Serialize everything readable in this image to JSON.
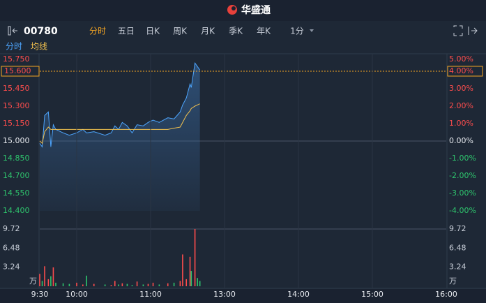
{
  "header": {
    "brand": "华盛通"
  },
  "toolbar": {
    "code": "00780",
    "tabs": [
      "分时",
      "五日",
      "日K",
      "周K",
      "月K",
      "季K",
      "年K",
      "1分"
    ],
    "active_tab": 0
  },
  "chart_data": [
    {
      "type": "line",
      "x": [
        0,
        2,
        4,
        7,
        9,
        11,
        13,
        19,
        24,
        30,
        35,
        38,
        44,
        53,
        58,
        61,
        64,
        67,
        71,
        75,
        79,
        84,
        88,
        92,
        97,
        104,
        109,
        114,
        116,
        119,
        122,
        123,
        126,
        128,
        130
      ],
      "series": [
        {
          "name": "分时",
          "color": "#4da6ff",
          "values": [
            14.98,
            14.95,
            15.22,
            15.25,
            14.95,
            15.14,
            15.1,
            15.07,
            15.05,
            15.07,
            15.1,
            15.07,
            15.08,
            15.05,
            15.07,
            15.13,
            15.1,
            15.16,
            15.13,
            15.07,
            15.14,
            15.13,
            15.16,
            15.18,
            15.16,
            15.2,
            15.19,
            15.25,
            15.31,
            15.37,
            15.49,
            15.46,
            15.67,
            15.64,
            15.61
          ]
        },
        {
          "name": "均线",
          "color": "#f2c14e",
          "values": [
            15.0,
            14.98,
            15.08,
            15.12,
            15.1,
            15.1,
            15.1,
            15.1,
            15.1,
            15.1,
            15.1,
            15.1,
            15.1,
            15.1,
            15.1,
            15.1,
            15.1,
            15.1,
            15.1,
            15.1,
            15.1,
            15.1,
            15.1,
            15.1,
            15.1,
            15.1,
            15.11,
            15.12,
            15.16,
            15.22,
            15.26,
            15.28,
            15.3,
            15.31,
            15.32
          ]
        }
      ],
      "xlim": [
        0,
        330
      ],
      "ylim": [
        14.4,
        15.75
      ],
      "yticks": [
        {
          "value": 15.75,
          "label": "15.750"
        },
        {
          "value": 15.45,
          "label": "15.450"
        },
        {
          "value": 15.3,
          "label": "15.300"
        },
        {
          "value": 15.15,
          "label": "15.150"
        },
        {
          "value": 15.0,
          "label": "15.000"
        },
        {
          "value": 14.85,
          "label": "14.850"
        },
        {
          "value": 14.7,
          "label": "14.700"
        },
        {
          "value": 14.55,
          "label": "14.550"
        },
        {
          "value": 14.4,
          "label": "14.400"
        }
      ],
      "y2lim": [
        -4,
        5
      ],
      "y2ticks": [
        {
          "value": 5,
          "label": "5.00%"
        },
        {
          "value": 3,
          "label": "3.00%"
        },
        {
          "value": 2,
          "label": "2.00%"
        },
        {
          "value": 1,
          "label": "1.00%"
        },
        {
          "value": 0,
          "label": "0.00%"
        },
        {
          "value": -1,
          "label": "-1.00%"
        },
        {
          "value": -2,
          "label": "-2.00%"
        },
        {
          "value": -3,
          "label": "-3.00%"
        },
        {
          "value": -4,
          "label": "-4.00%"
        }
      ],
      "current_price": {
        "value": 15.6,
        "label": "15.600"
      },
      "current_change": {
        "value": 4,
        "label": "4.00%"
      },
      "up_color": "#ff4d4d",
      "down_color": "#2ec46d"
    },
    {
      "type": "bar",
      "x": [
        0,
        2,
        4,
        7,
        9,
        11,
        13,
        19,
        24,
        30,
        35,
        38,
        44,
        53,
        58,
        61,
        64,
        67,
        71,
        75,
        79,
        84,
        88,
        92,
        97,
        104,
        109,
        114,
        116,
        119,
        122,
        123,
        126,
        128,
        130
      ],
      "values": [
        2.1,
        0.9,
        3.4,
        1.2,
        1.7,
        3.2,
        0.6,
        0.5,
        0.4,
        0.6,
        0.3,
        1.8,
        0.4,
        0.3,
        0.2,
        0.9,
        0.3,
        0.5,
        0.4,
        0.2,
        0.8,
        0.3,
        0.4,
        0.6,
        0.3,
        0.5,
        0.6,
        0.9,
        5.4,
        1.2,
        5.0,
        2.6,
        9.72,
        1.4,
        0.9
      ],
      "xlim": [
        0,
        330
      ],
      "xticks": [
        {
          "value": 0,
          "label": "9:30"
        },
        {
          "value": 30,
          "label": "10:00"
        },
        {
          "value": 90,
          "label": "11:00"
        },
        {
          "value": 150,
          "label": "13:00"
        },
        {
          "value": 210,
          "label": "14:00"
        },
        {
          "value": 270,
          "label": "15:00"
        },
        {
          "value": 330,
          "label": "16:00"
        }
      ],
      "ylim": [
        0,
        9.72
      ],
      "yticks": [
        9.72,
        6.48,
        3.24
      ],
      "unit": "万"
    }
  ]
}
